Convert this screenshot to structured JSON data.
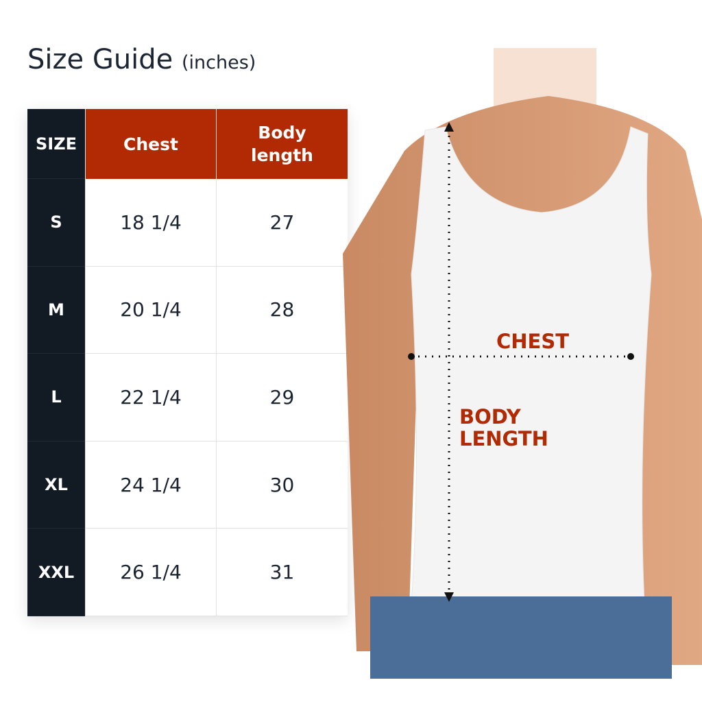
{
  "title": {
    "main": "Size Guide",
    "unit": "(inches)"
  },
  "table": {
    "headers": [
      "SIZE",
      "Chest",
      "Body length"
    ],
    "rows": [
      {
        "size": "S",
        "chest": "18 1/4",
        "body_length": "27"
      },
      {
        "size": "M",
        "chest": "20 1/4",
        "body_length": "28"
      },
      {
        "size": "L",
        "chest": "22 1/4",
        "body_length": "29"
      },
      {
        "size": "XL",
        "chest": "24 1/4",
        "body_length": "30"
      },
      {
        "size": "XXL",
        "chest": "26 1/4",
        "body_length": "31"
      }
    ]
  },
  "photo": {
    "chest_label": "CHEST",
    "body_length_label": "BODY LENGTH"
  },
  "colors": {
    "accent": "#b22a04",
    "dark": "#121a23"
  }
}
